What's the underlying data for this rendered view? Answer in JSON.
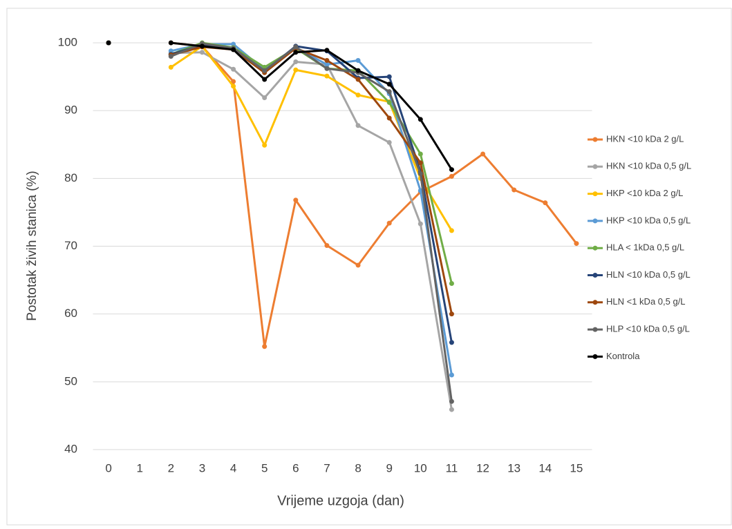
{
  "chart_data": {
    "type": "line",
    "x_label": "Vrijeme uzgoja (dan)",
    "y_label": "Postotak živih stanica (%)",
    "categories": [
      "0",
      "1",
      "2",
      "3",
      "4",
      "5",
      "6",
      "7",
      "8",
      "9",
      "10",
      "11",
      "12",
      "13",
      "14",
      "15"
    ],
    "ylim": [
      40,
      100
    ],
    "yticks": [
      40,
      50,
      60,
      70,
      80,
      90,
      100
    ],
    "grid": true,
    "legend": "right",
    "series": [
      {
        "name": "HKN <10 kDa 2 g/L",
        "color": "#ed7d31",
        "values": [
          100,
          null,
          100,
          99.5,
          94.3,
          55.2,
          76.8,
          70.1,
          67.2,
          73.4,
          78,
          80.3,
          83.6,
          78.3,
          76.4,
          70.4
        ]
      },
      {
        "name": "HKN <10 kDa 0,5 g/L",
        "color": "#a5a5a5",
        "values": [
          100,
          null,
          98.5,
          98.6,
          96.1,
          91.9,
          97.2,
          96.8,
          87.8,
          85.3,
          73.3,
          45.9,
          null,
          null,
          null,
          null
        ]
      },
      {
        "name": "HKP <10 kDa 2 g/L",
        "color": "#ffc000",
        "values": [
          100,
          null,
          96.4,
          99.5,
          93.6,
          84.9,
          96,
          95.1,
          92.3,
          91.3,
          80,
          72.3,
          null,
          null,
          null,
          null
        ]
      },
      {
        "name": "HKP <10 kDa 0,5 g/L",
        "color": "#5b9bd5",
        "values": [
          100,
          null,
          98.8,
          99.8,
          99.8,
          96,
          99.3,
          96.8,
          97.4,
          92.5,
          78.2,
          51,
          null,
          null,
          null,
          null
        ]
      },
      {
        "name": "HLA < 1kDa 0,5 g/L",
        "color": "#70ad47",
        "values": [
          100,
          null,
          98.3,
          100,
          99.3,
          96.4,
          99.2,
          96.2,
          95.9,
          91.2,
          83.6,
          64.5,
          null,
          null,
          null,
          null
        ]
      },
      {
        "name": "HLN <10 kDa 0,5 g/L",
        "color": "#264478",
        "values": [
          100,
          null,
          98.3,
          99.7,
          99,
          95.8,
          99.5,
          98.8,
          94.8,
          95,
          81,
          55.8,
          null,
          null,
          null,
          null
        ]
      },
      {
        "name": "HLN <1 kDa 0,5 g/L",
        "color": "#9e480e",
        "values": [
          100,
          null,
          98.2,
          99.4,
          99,
          95.6,
          99.2,
          97.4,
          94.6,
          88.9,
          82.3,
          60,
          null,
          null,
          null,
          null
        ]
      },
      {
        "name": "HLP <10 kDa 0,5 g/L",
        "color": "#636363",
        "values": [
          100,
          null,
          98,
          99.9,
          99.2,
          95.9,
          99.4,
          96.2,
          95.6,
          92.8,
          80.7,
          47.1,
          null,
          null,
          null,
          null
        ]
      },
      {
        "name": "Kontrola",
        "color": "#000000",
        "values": [
          100,
          null,
          100,
          99.5,
          99,
          94.6,
          98.6,
          98.9,
          95.9,
          93.9,
          88.7,
          81.3,
          null,
          null,
          null,
          null
        ]
      }
    ]
  }
}
